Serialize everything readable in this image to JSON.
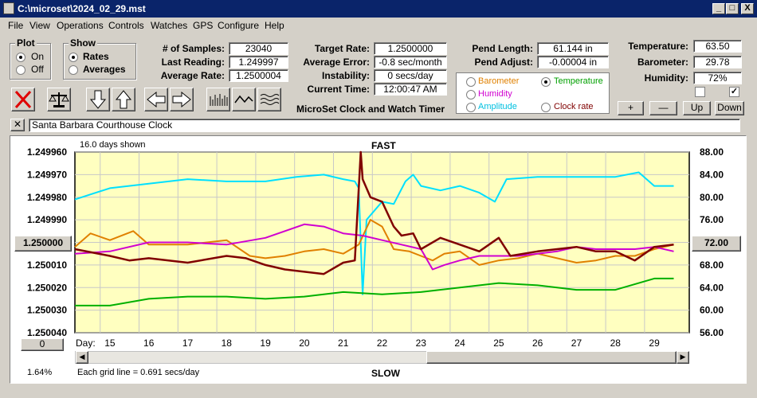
{
  "window": {
    "title": "C:\\microset\\2024_02_29.mst",
    "minimize": "_",
    "maximize": "□",
    "close": "X"
  },
  "menu": [
    "File",
    "View",
    "Operations",
    "Controls",
    "Watches",
    "GPS",
    "Configure",
    "Help"
  ],
  "plot_group": {
    "title": "Plot",
    "options": [
      "On",
      "Off"
    ],
    "selected": "On"
  },
  "show_group": {
    "title": "Show",
    "options": [
      "Rates",
      "Averages"
    ],
    "selected": "Rates"
  },
  "stats": {
    "samples_label": "# of Samples:",
    "samples": "23040",
    "last_reading_label": "Last Reading:",
    "last_reading": "1.249997",
    "average_rate_label": "Average Rate:",
    "average_rate": "1.2500004",
    "target_rate_label": "Target Rate:",
    "target_rate": "1.2500000",
    "average_error_label": "Average Error:",
    "average_error": "-0.8 sec/month",
    "instability_label": "Instability:",
    "instability": "0 secs/day",
    "current_time_label": "Current Time:",
    "current_time": "12:00:47 AM",
    "pend_length_label": "Pend Length:",
    "pend_length": "61.144 in",
    "pend_adjust_label": "Pend Adjust:",
    "pend_adjust": "-0.00004 in",
    "temperature_label": "Temperature:",
    "temperature": "63.50",
    "barometer_label": "Barometer:",
    "barometer": "29.78",
    "humidity_label": "Humidity:",
    "humidity": "72%"
  },
  "app_name": "MicroSet Clock and Watch Timer",
  "right_axis_select": {
    "options": [
      {
        "label": "Barometer",
        "color": "#e08000",
        "selected": false
      },
      {
        "label": "Temperature",
        "color": "#00a000",
        "selected": true
      },
      {
        "label": "Humidity",
        "color": "#d000d0",
        "selected": false
      },
      {
        "label": "Clock rate",
        "color": "#800000",
        "selected": false
      },
      {
        "label": "Amplitude",
        "color": "#00c0e0",
        "selected": false
      }
    ]
  },
  "right_buttons": {
    "plus": "+",
    "minus": "—",
    "up": "Up",
    "down": "Down"
  },
  "checkboxes": [
    {
      "checked": false
    },
    {
      "checked": true
    }
  ],
  "clock_name": "Santa Barbara Courthouse Clock",
  "chart_labels": {
    "days_shown": "16.0 days shown",
    "fast": "FAST",
    "slow": "SLOW",
    "grid_note": "Each grid line = 0.691 secs/day",
    "day_label": "Day:",
    "left_center_btn": "1.250000",
    "right_center_btn": "72.00",
    "bottom_btn": "0",
    "percent": "1.64%"
  },
  "chart_data": {
    "type": "line",
    "x_ticks": [
      "15",
      "16",
      "17",
      "18",
      "19",
      "20",
      "21",
      "22",
      "23",
      "24",
      "25",
      "26",
      "27",
      "28",
      "29"
    ],
    "y_left_ticks": [
      "1.249960",
      "1.249970",
      "1.249980",
      "1.249990",
      "1.250000",
      "1.250010",
      "1.250020",
      "1.250030",
      "1.250040"
    ],
    "y_right_ticks": [
      "88.00",
      "84.00",
      "80.00",
      "76.00",
      "72.00",
      "68.00",
      "64.00",
      "60.00",
      "56.00"
    ],
    "ylim_left": [
      1.24996,
      1.25004
    ],
    "ylim_right": [
      56,
      88
    ],
    "xlim": [
      14.1,
      29.9
    ],
    "grid": true,
    "background": "#ffffc0",
    "series": [
      {
        "color": "#00e0ff",
        "x": [
          14.1,
          15,
          16,
          17,
          18,
          19,
          19.8,
          20.5,
          21,
          21.3,
          21.4,
          21.5,
          21.6,
          21.8,
          22,
          22.3,
          22.6,
          22.8,
          23,
          23.5,
          24,
          24.5,
          24.9,
          25.2,
          26,
          27,
          28,
          28.6,
          29,
          29.5
        ],
        "y": [
          1.249981,
          1.249976,
          1.249974,
          1.249972,
          1.249973,
          1.249973,
          1.249971,
          1.24997,
          1.249972,
          1.249973,
          1.249976,
          1.250023,
          1.24999,
          1.249986,
          1.249982,
          1.249983,
          1.249973,
          1.24997,
          1.249975,
          1.249977,
          1.249975,
          1.249978,
          1.249982,
          1.249972,
          1.249971,
          1.249971,
          1.249971,
          1.249969,
          1.249975,
          1.249975
        ]
      },
      {
        "color": "#e08000",
        "x": [
          14.1,
          14.5,
          15,
          15.6,
          16,
          17,
          18,
          18.6,
          19,
          19.5,
          20,
          20.5,
          21,
          21.4,
          21.7,
          22,
          22.3,
          22.7,
          23,
          23.3,
          23.6,
          24,
          24.5,
          25,
          25.5,
          26,
          26.5,
          27,
          27.5,
          28,
          28.5,
          29,
          29.5
        ],
        "y": [
          1.250002,
          1.249996,
          1.249999,
          1.249995,
          1.250001,
          1.250001,
          1.249999,
          1.250006,
          1.250007,
          1.250006,
          1.250004,
          1.250003,
          1.250005,
          1.250001,
          1.24999,
          1.249993,
          1.250003,
          1.250004,
          1.250006,
          1.250008,
          1.250005,
          1.250004,
          1.25001,
          1.250008,
          1.250007,
          1.250005,
          1.250007,
          1.250009,
          1.250008,
          1.250006,
          1.250006,
          1.250003,
          1.250001
        ]
      },
      {
        "color": "#d000d0",
        "x": [
          14.1,
          15,
          16,
          17,
          18,
          19,
          20,
          20.5,
          21,
          21.5,
          22,
          22.5,
          23,
          23.3,
          23.6,
          24,
          24.5,
          25,
          25.5,
          26,
          26.5,
          27,
          27.5,
          28,
          28.5,
          29,
          29.5
        ],
        "y": [
          1.250005,
          1.250004,
          1.25,
          1.25,
          1.250001,
          1.249998,
          1.249992,
          1.249993,
          1.249996,
          1.249997,
          1.249999,
          1.250001,
          1.250003,
          1.250012,
          1.25001,
          1.250008,
          1.250006,
          1.250006,
          1.250006,
          1.250005,
          1.250004,
          1.250002,
          1.250003,
          1.250003,
          1.250003,
          1.250002,
          1.250004
        ]
      },
      {
        "color": "#800000",
        "x": [
          14.1,
          15,
          15.5,
          16,
          17,
          18,
          18.5,
          19,
          19.5,
          20,
          20.5,
          21,
          21.3,
          21.45,
          21.5,
          21.7,
          22,
          22.3,
          22.5,
          22.8,
          23,
          23.5,
          24,
          24.5,
          25,
          25.3,
          26,
          26.5,
          27,
          27.5,
          28,
          28.5,
          29,
          29.5
        ],
        "y": [
          1.250003,
          1.250006,
          1.250008,
          1.250007,
          1.250009,
          1.250006,
          1.250007,
          1.25001,
          1.250012,
          1.250013,
          1.250014,
          1.250009,
          1.250008,
          1.24996,
          1.249972,
          1.24998,
          1.249982,
          1.249993,
          1.249997,
          1.249996,
          1.250003,
          1.249998,
          1.250001,
          1.250004,
          1.249998,
          1.250006,
          1.250004,
          1.250003,
          1.250002,
          1.250004,
          1.250004,
          1.250008,
          1.250002,
          1.250001
        ]
      },
      {
        "color": "#00b000",
        "x": [
          14.1,
          15,
          16,
          17,
          18,
          19,
          20,
          21,
          22,
          23,
          24,
          25,
          26,
          27,
          28,
          29,
          29.5
        ],
        "y": [
          1.250028,
          1.250028,
          1.250025,
          1.250024,
          1.250024,
          1.250025,
          1.250024,
          1.250022,
          1.250023,
          1.250022,
          1.25002,
          1.250018,
          1.250019,
          1.250021,
          1.250021,
          1.250016,
          1.250016
        ]
      }
    ]
  }
}
